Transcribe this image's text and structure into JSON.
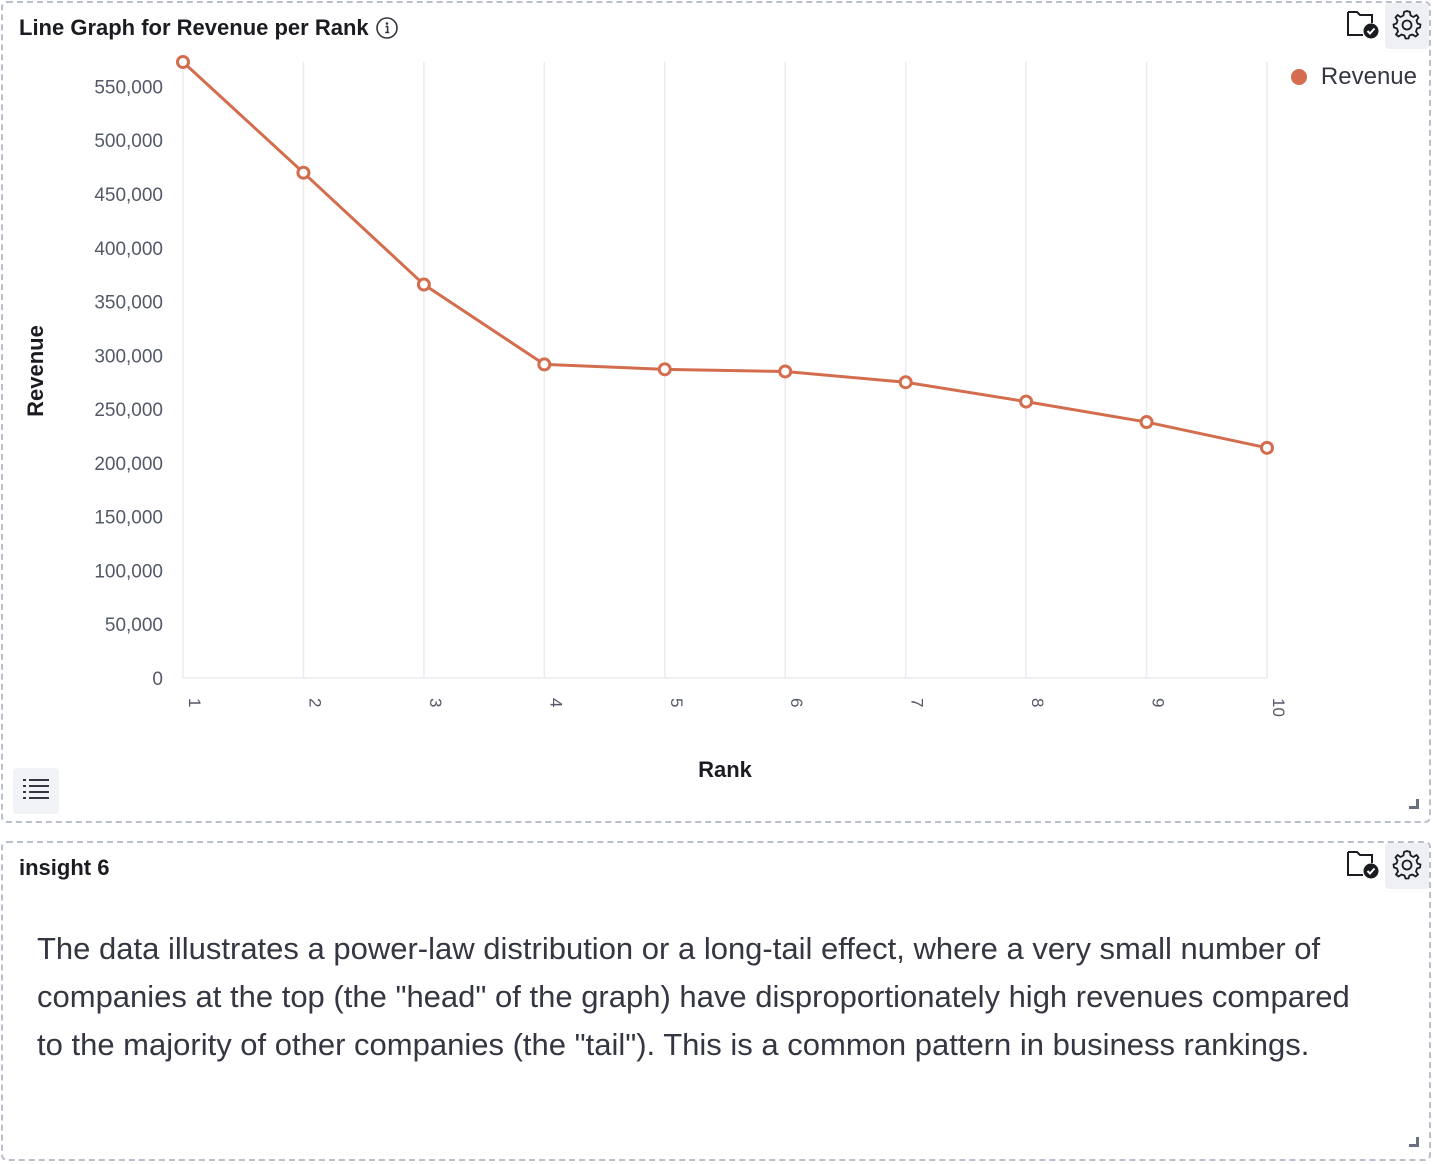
{
  "chart_panel": {
    "title": "Line Graph for Revenue per Rank",
    "icons": [
      "info-icon",
      "folder-check-icon",
      "gear-icon",
      "list-icon"
    ]
  },
  "insight_panel": {
    "title": "insight 6",
    "body": "The data illustrates a power-law distribution or a long-tail effect, where a very small number of companies at the top (the \"head\" of the graph) have disproportionately high revenues compared to the majority of other companies (the \"tail\"). This is a common pattern in business rankings.",
    "icons": [
      "folder-check-icon",
      "gear-icon"
    ]
  },
  "chart_data": {
    "type": "line",
    "title": "Line Graph for Revenue per Rank",
    "xlabel": "Rank",
    "ylabel": "Revenue",
    "x": [
      1,
      2,
      3,
      4,
      5,
      6,
      7,
      8,
      9,
      10
    ],
    "x_tick_labels": [
      "1",
      "2",
      "3",
      "4",
      "5",
      "6",
      "7",
      "8",
      "9",
      "10"
    ],
    "y_tick_values": [
      0,
      50000,
      100000,
      150000,
      200000,
      250000,
      300000,
      350000,
      400000,
      450000,
      500000,
      550000
    ],
    "y_tick_labels": [
      "0",
      "50,000",
      "100,000",
      "150,000",
      "200,000",
      "250,000",
      "300,000",
      "350,000",
      "400,000",
      "450,000",
      "500,000",
      "550,000"
    ],
    "ylim": [
      0,
      572754
    ],
    "grid": "vertical",
    "legend_position": "top-right",
    "series": [
      {
        "name": "Revenue",
        "color": "#d36d4e",
        "values": [
          572754,
          469822,
          365817,
          291580,
          287000,
          285000,
          275000,
          257000,
          238000,
          214000
        ]
      }
    ]
  }
}
